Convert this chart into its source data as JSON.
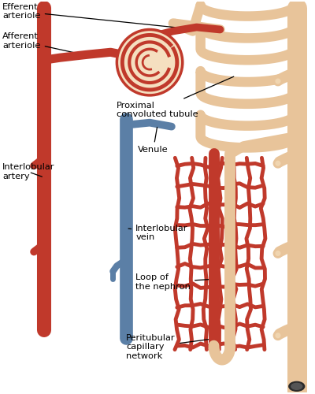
{
  "bg_color": "#ffffff",
  "artery_color": "#c0392b",
  "vein_color": "#5b7fa6",
  "tubule_color": "#e8c49a",
  "text_color": "#000000",
  "labels": {
    "efferent": "Efferent\narteriole",
    "afferent": "Afferent\narteriole",
    "proximal": "Proximal\nconvoluted tubule",
    "interlobular_artery": "Interlobular\nartery",
    "venule": "Venule",
    "interlobular_vein": "Interlobular\nvein",
    "loop": "Loop of\nthe nephron",
    "peritubular": "Peritubular\ncapillary\nnetwork"
  }
}
